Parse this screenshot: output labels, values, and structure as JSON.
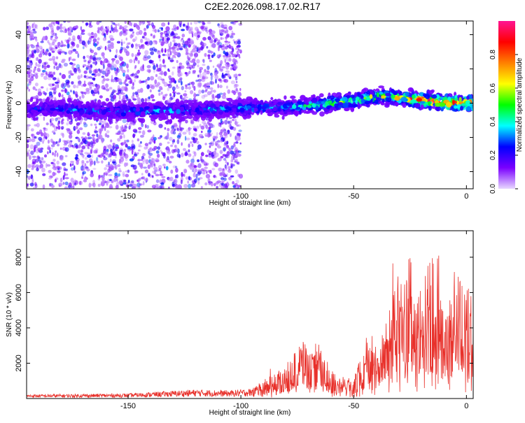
{
  "title": "C2E2.2026.098.17.02.R17",
  "chart_data": [
    {
      "type": "heatmap",
      "xlabel": "Height of straight line (km)",
      "ylabel": "Frequency (Hz)",
      "xlim": [
        -195,
        3
      ],
      "ylim": [
        -50,
        48
      ],
      "x_ticks": [
        -150,
        -100,
        -50,
        0
      ],
      "y_ticks": [
        -40,
        -20,
        0,
        20,
        40
      ],
      "colorbar": {
        "label": "Normalized spectral amplitude",
        "range": [
          0,
          1
        ],
        "ticks": [
          0.0,
          0.2,
          0.4,
          0.6,
          0.8
        ],
        "tick_labels": [
          "0.0",
          "0.2",
          "0.4",
          "0.6",
          "0.8"
        ],
        "colors": [
          "#e8d8ff",
          "#7a00ff",
          "#0000ff",
          "#00ffff",
          "#00ff00",
          "#ffff00",
          "#ff8000",
          "#ff0000",
          "#ff1493"
        ]
      },
      "ridge": {
        "x": [
          -195,
          -150,
          -100,
          -75,
          -60,
          -50,
          -40,
          -30,
          -20,
          -10,
          0
        ],
        "freq": [
          -3,
          -5,
          -3,
          -2,
          0,
          1.5,
          4,
          3,
          2,
          0.5,
          0
        ],
        "amplitude": [
          0.3,
          0.35,
          0.35,
          0.42,
          0.55,
          0.62,
          0.62,
          0.7,
          0.85,
          0.95,
          0.9
        ]
      },
      "noise_region": {
        "x_range": [
          -195,
          -100
        ],
        "freq_range": [
          -50,
          48
        ],
        "amplitude": 0.15
      }
    },
    {
      "type": "line",
      "xlabel": "Height of straight line (km)",
      "ylabel": "SNR (10 * v/v)",
      "xlim": [
        -195,
        3
      ],
      "ylim": [
        0,
        9500
      ],
      "x_ticks": [
        -150,
        -100,
        -50,
        0
      ],
      "y_ticks": [
        2000,
        4000,
        6000,
        8000
      ],
      "color": "#e8302a",
      "envelope": {
        "x": [
          -195,
          -150,
          -120,
          -105,
          -95,
          -90,
          -85,
          -78,
          -72,
          -68,
          -65,
          -60,
          -55,
          -50,
          -45,
          -42,
          -40,
          -35,
          -30,
          -28,
          -25,
          -22,
          -20,
          -15,
          -12,
          -10,
          -8,
          -5,
          -2,
          0,
          3
        ],
        "y": [
          200,
          250,
          450,
          400,
          500,
          900,
          1300,
          2000,
          3000,
          2200,
          2500,
          1500,
          900,
          1200,
          2500,
          3500,
          2500,
          4000,
          6500,
          5500,
          7000,
          4500,
          6000,
          7000,
          5500,
          4000,
          5500,
          6500,
          5800,
          5500,
          5200
        ]
      }
    }
  ]
}
